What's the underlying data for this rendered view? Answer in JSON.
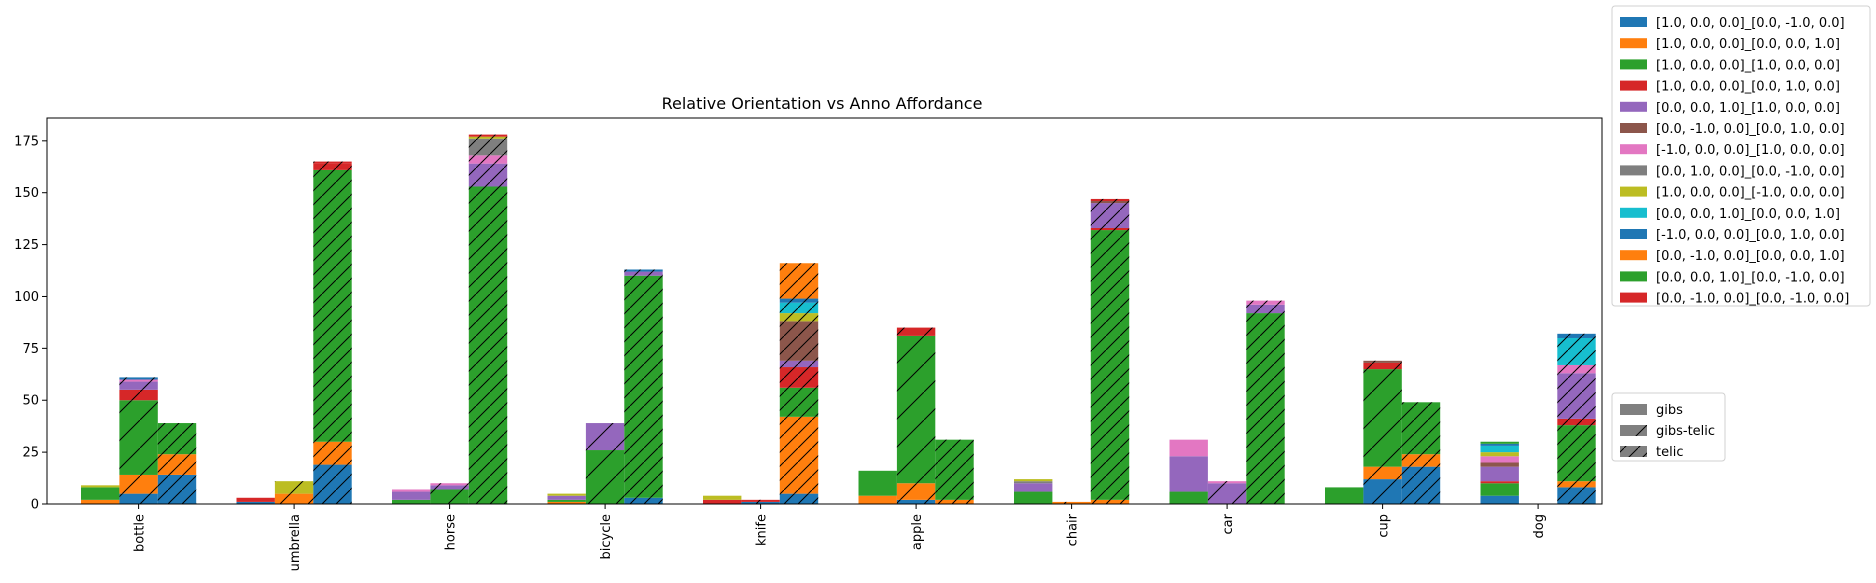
{
  "chart_data": {
    "type": "bar",
    "title": "Relative Orientation vs Anno Affordance",
    "xlabel": "",
    "ylabel": "",
    "ylim": [
      0,
      186
    ],
    "yticks": [
      0,
      25,
      50,
      75,
      100,
      125,
      150,
      175
    ],
    "categories": [
      "bottle",
      "umbrella",
      "horse",
      "bicycle",
      "knife",
      "apple",
      "chair",
      "car",
      "cup",
      "dog"
    ],
    "groups": [
      "gibs",
      "gibs-telic",
      "telic"
    ],
    "series": [
      {
        "name": "[1.0, 0.0, 0.0]_[0.0, -1.0, 0.0]",
        "color": "#1f77b4",
        "values": {
          "gibs": [
            0,
            1,
            0,
            0,
            0,
            0,
            0,
            0,
            0,
            4
          ],
          "gibs-telic": [
            5,
            0,
            0,
            0,
            1,
            2,
            0,
            0,
            12,
            0
          ],
          "telic": [
            14,
            19,
            0,
            3,
            5,
            0,
            0,
            0,
            18,
            8
          ]
        }
      },
      {
        "name": "[1.0, 0.0, 0.0]_[0.0, 0.0, 1.0]",
        "color": "#ff7f0e",
        "values": {
          "gibs": [
            2,
            0,
            0,
            1,
            0,
            4,
            0,
            0,
            0,
            0
          ],
          "gibs-telic": [
            9,
            5,
            0,
            0,
            0,
            8,
            1,
            0,
            6,
            0
          ],
          "telic": [
            10,
            11,
            0,
            0,
            37,
            2,
            2,
            0,
            6,
            3
          ]
        }
      },
      {
        "name": "[1.0, 0.0, 0.0]_[1.0, 0.0, 0.0]",
        "color": "#2ca02c",
        "values": {
          "gibs": [
            6,
            0,
            2,
            1,
            0,
            12,
            6,
            6,
            8,
            6
          ],
          "gibs-telic": [
            36,
            0,
            7,
            26,
            0,
            71,
            0,
            0,
            47,
            0
          ],
          "telic": [
            15,
            131,
            153,
            107,
            14,
            29,
            130,
            92,
            25,
            27
          ]
        }
      },
      {
        "name": "[1.0, 0.0, 0.0]_[0.0, 1.0, 0.0]",
        "color": "#d62728",
        "values": {
          "gibs": [
            0,
            2,
            0,
            0,
            2,
            0,
            0,
            0,
            0,
            1
          ],
          "gibs-telic": [
            5,
            0,
            0,
            0,
            1,
            4,
            0,
            0,
            3,
            0
          ],
          "telic": [
            0,
            3,
            0,
            0,
            10,
            0,
            1,
            0,
            0,
            3
          ]
        }
      },
      {
        "name": "[0.0, 0.0, 1.0]_[1.0, 0.0, 0.0]",
        "color": "#9467bd",
        "values": {
          "gibs": [
            0,
            0,
            4,
            2,
            0,
            0,
            4,
            17,
            0,
            7
          ],
          "gibs-telic": [
            4,
            0,
            2,
            13,
            0,
            0,
            0,
            10,
            0,
            0
          ],
          "telic": [
            0,
            0,
            11,
            2,
            3,
            0,
            12,
            4,
            0,
            22
          ]
        }
      },
      {
        "name": "[0.0, -1.0, 0.0]_[0.0, 1.0, 0.0]",
        "color": "#8c564b",
        "values": {
          "gibs": [
            0,
            0,
            0,
            0,
            0,
            0,
            0,
            0,
            0,
            2
          ],
          "gibs-telic": [
            0,
            0,
            0,
            0,
            0,
            0,
            0,
            0,
            1,
            0
          ],
          "telic": [
            0,
            0,
            0,
            0,
            19,
            0,
            1,
            0,
            0,
            0
          ]
        }
      },
      {
        "name": "[-1.0, 0.0, 0.0]_[1.0, 0.0, 0.0]",
        "color": "#e377c2",
        "values": {
          "gibs": [
            0,
            0,
            1,
            0,
            0,
            0,
            0,
            8,
            0,
            3
          ],
          "gibs-telic": [
            1,
            0,
            1,
            0,
            0,
            0,
            0,
            1,
            0,
            0
          ],
          "telic": [
            0,
            0,
            4,
            0,
            0,
            0,
            0,
            2,
            0,
            4
          ]
        }
      },
      {
        "name": "[0.0, 1.0, 0.0]_[0.0, -1.0, 0.0]",
        "color": "#7f7f7f",
        "values": {
          "gibs": [
            0,
            0,
            0,
            0,
            0,
            0,
            1,
            0,
            0,
            0
          ],
          "gibs-telic": [
            0,
            0,
            0,
            0,
            0,
            0,
            0,
            0,
            0,
            0
          ],
          "telic": [
            0,
            0,
            8,
            0,
            0,
            0,
            0,
            0,
            0,
            0
          ]
        }
      },
      {
        "name": "[1.0, 0.0, 0.0]_[-1.0, 0.0, 0.0]",
        "color": "#bcbd22",
        "values": {
          "gibs": [
            1,
            0,
            0,
            1,
            2,
            0,
            1,
            0,
            0,
            2
          ],
          "gibs-telic": [
            0,
            6,
            0,
            0,
            0,
            0,
            0,
            0,
            0,
            0
          ],
          "telic": [
            0,
            0,
            1,
            0,
            4,
            0,
            0,
            0,
            0,
            0
          ]
        }
      },
      {
        "name": "[0.0, 0.0, 1.0]_[0.0, 0.0, 1.0]",
        "color": "#17becf",
        "values": {
          "gibs": [
            0,
            0,
            0,
            0,
            0,
            0,
            0,
            0,
            0,
            3
          ],
          "gibs-telic": [
            0,
            0,
            0,
            0,
            0,
            0,
            0,
            0,
            0,
            0
          ],
          "telic": [
            0,
            0,
            0,
            0,
            5,
            0,
            0,
            0,
            0,
            13
          ]
        }
      },
      {
        "name": "[-1.0, 0.0, 0.0]_[0.0, 1.0, 0.0]",
        "color": "#1f77b4",
        "values": {
          "gibs": [
            0,
            0,
            0,
            0,
            0,
            0,
            0,
            0,
            0,
            1
          ],
          "gibs-telic": [
            1,
            0,
            0,
            0,
            0,
            0,
            0,
            0,
            0,
            0
          ],
          "telic": [
            0,
            0,
            0,
            1,
            2,
            0,
            0,
            0,
            0,
            2
          ]
        }
      },
      {
        "name": "[0.0, -1.0, 0.0]_[0.0, 0.0, 1.0]",
        "color": "#ff7f0e",
        "values": {
          "gibs": [
            0,
            0,
            0,
            0,
            0,
            0,
            0,
            0,
            0,
            0
          ],
          "gibs-telic": [
            0,
            0,
            0,
            0,
            0,
            0,
            0,
            0,
            0,
            0
          ],
          "telic": [
            0,
            0,
            0,
            0,
            17,
            0,
            0,
            0,
            0,
            0
          ]
        }
      },
      {
        "name": "[0.0, 0.0, 1.0]_[0.0, -1.0, 0.0]",
        "color": "#2ca02c",
        "values": {
          "gibs": [
            0,
            0,
            0,
            0,
            0,
            0,
            0,
            0,
            0,
            1
          ],
          "gibs-telic": [
            0,
            0,
            0,
            0,
            0,
            0,
            0,
            0,
            0,
            0
          ],
          "telic": [
            0,
            0,
            0,
            0,
            0,
            0,
            0,
            0,
            0,
            0
          ]
        }
      },
      {
        "name": "[0.0, -1.0, 0.0]_[0.0, -1.0, 0.0]",
        "color": "#d62728",
        "values": {
          "gibs": [
            0,
            0,
            0,
            0,
            0,
            0,
            0,
            0,
            0,
            0
          ],
          "gibs-telic": [
            0,
            0,
            0,
            0,
            0,
            0,
            0,
            0,
            0,
            0
          ],
          "telic": [
            0,
            1,
            1,
            0,
            0,
            0,
            1,
            0,
            0,
            0
          ]
        }
      }
    ],
    "legend_series_placement": "top-right, outside plot",
    "legend_groups_placement": "right, outside plot",
    "group_legend": [
      {
        "label": "gibs",
        "hatch": "none"
      },
      {
        "label": "gibs-telic",
        "hatch": "sparse"
      },
      {
        "label": "telic",
        "hatch": "dense"
      }
    ],
    "grid": false
  }
}
